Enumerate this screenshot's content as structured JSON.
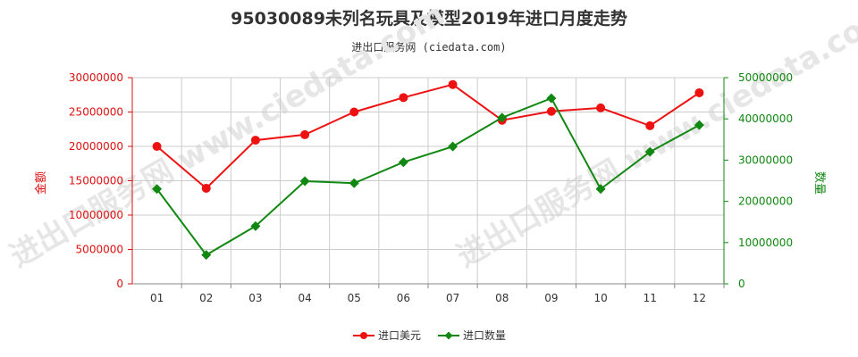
{
  "chart_data": {
    "type": "line",
    "title": "95030089未列名玩具及模型2019年进口月度走势",
    "subtitle": "进出口服务网 (ciedata.com)",
    "categories": [
      "01",
      "02",
      "03",
      "04",
      "05",
      "06",
      "07",
      "08",
      "09",
      "10",
      "11",
      "12"
    ],
    "y_left": {
      "label": "金额",
      "ylim": [
        0,
        30000000
      ],
      "ticks": [
        "0",
        "5000000",
        "10000000",
        "15000000",
        "20000000",
        "25000000",
        "30000000"
      ]
    },
    "y_right": {
      "label": "数量",
      "ylim": [
        0,
        50000000
      ],
      "ticks": [
        "0",
        "10000000",
        "20000000",
        "30000000",
        "40000000",
        "50000000"
      ]
    },
    "series": [
      {
        "name": "进口美元",
        "axis": "left",
        "color": "#ee1111",
        "marker": "circle",
        "values": [
          20000000,
          13900000,
          20900000,
          21700000,
          25000000,
          27100000,
          29000000,
          23800000,
          25100000,
          25600000,
          23000000,
          27800000
        ]
      },
      {
        "name": "进口数量",
        "axis": "right",
        "color": "#118811",
        "marker": "diamond",
        "values": [
          23000000,
          7000000,
          14000000,
          24900000,
          24400000,
          29500000,
          33300000,
          40300000,
          45000000,
          23000000,
          32000000,
          38500000
        ]
      }
    ],
    "grid": true,
    "legend": "bottom-center",
    "colors": {
      "left_axis": "#dd1111",
      "right_axis": "#118811",
      "grid": "#cccccc"
    }
  }
}
